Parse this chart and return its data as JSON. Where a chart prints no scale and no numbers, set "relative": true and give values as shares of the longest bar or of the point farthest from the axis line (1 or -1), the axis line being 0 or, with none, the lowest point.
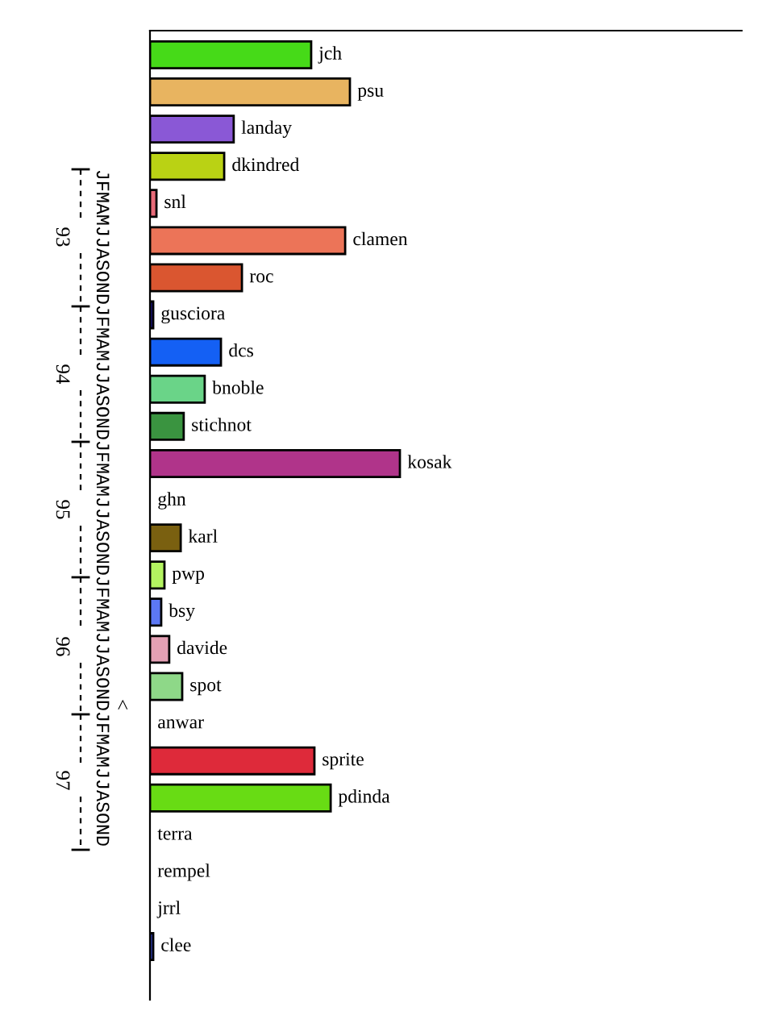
{
  "chart_data": {
    "type": "bar",
    "orientation": "horizontal",
    "relative": true,
    "categories": [
      "jch",
      "psu",
      "landay",
      "dkindred",
      "snl",
      "clamen",
      "roc",
      "gusciora",
      "dcs",
      "bnoble",
      "stichnot",
      "kosak",
      "ghn",
      "karl",
      "pwp",
      "bsy",
      "davide",
      "spot",
      "anwar",
      "sprite",
      "pdinda",
      "terra",
      "rempel",
      "jrrl",
      "clee"
    ],
    "values": [
      0.645,
      0.8,
      0.335,
      0.297,
      0.026,
      0.781,
      0.368,
      0.013,
      0.284,
      0.219,
      0.135,
      1,
      0,
      0.123,
      0.058,
      0.045,
      0.077,
      0.129,
      0,
      0.658,
      0.723,
      0,
      0,
      0,
      0.013
    ],
    "colors": [
      "#46da18",
      "#e8b460",
      "#8a58d6",
      "#bad214",
      "#e86a78",
      "#ec7458",
      "#da5630",
      "#201890",
      "#1460f4",
      "#6ad488",
      "#3a9440",
      "#b0348a",
      "#ffffff",
      "#7a6010",
      "#b4f460",
      "#5c78f4",
      "#e4a0b4",
      "#8ed888",
      "#ffffff",
      "#de2a3a",
      "#68dc14",
      "#ffffff",
      "#ffffff",
      "#ffffff",
      "#3848c8"
    ],
    "annotations": [
      "JFMAMJJASONDJFMAMJJASONDJFMAMJJASONDJFMAMJJASONDJFMAMJJASOND",
      "93",
      "94",
      "95",
      "96",
      "97",
      "<"
    ]
  }
}
